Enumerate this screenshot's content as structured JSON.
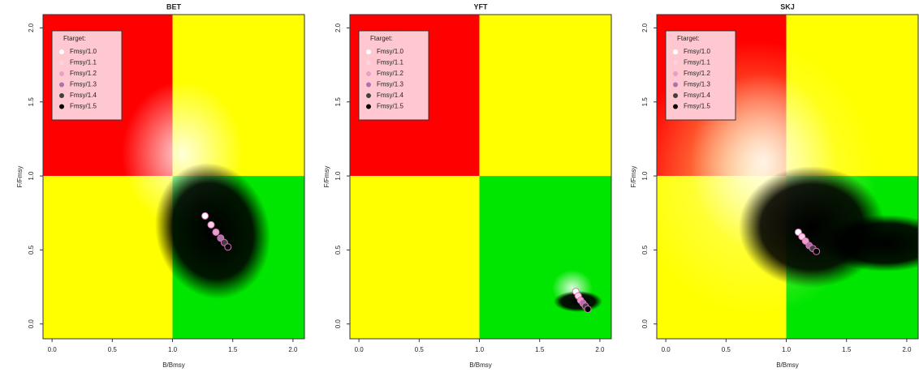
{
  "chart_data": [
    {
      "type": "scatter",
      "title": "BET",
      "xlabel": "B/Bmsy",
      "ylabel": "F/Fmsy",
      "xlim": [
        -0.075,
        2.095
      ],
      "ylim": [
        -0.1,
        2.09
      ],
      "xticks": [
        {
          "value": 0,
          "label": "0.0"
        },
        0.5,
        {
          "value": 1,
          "label": "1.0"
        },
        1.5,
        {
          "value": 2,
          "label": "2.0"
        }
      ],
      "yticks": [
        {
          "value": 0,
          "label": "0.0"
        },
        0.5,
        {
          "value": 1,
          "label": "1.0"
        },
        1.5,
        {
          "value": 2,
          "label": "2.0"
        }
      ],
      "quadrant_split": {
        "x": 1,
        "y": 1
      },
      "quadrant_colors": {
        "top_left": "#ff0000",
        "top_right": "#ffff00",
        "bottom_left": "#ffff00",
        "bottom_right": "#00e600"
      },
      "legend_title": "Ftarget:",
      "legend": "top-left",
      "series": [
        {
          "name": "Fmsy/1.0",
          "color": "#ffffff",
          "x": [
            1.27
          ],
          "values": [
            0.73
          ]
        },
        {
          "name": "Fmsy/1.1",
          "color": "#ffd0e0",
          "x": [
            1.32
          ],
          "values": [
            0.67
          ]
        },
        {
          "name": "Fmsy/1.2",
          "color": "#e8a0c8",
          "x": [
            1.36
          ],
          "values": [
            0.62
          ]
        },
        {
          "name": "Fmsy/1.3",
          "color": "#b070a8",
          "x": [
            1.4
          ],
          "values": [
            0.58
          ]
        },
        {
          "name": "Fmsy/1.4",
          "color": "#404040",
          "x": [
            1.43
          ],
          "values": [
            0.55
          ]
        },
        {
          "name": "Fmsy/1.5",
          "color": "#000000",
          "x": [
            1.46
          ],
          "values": [
            0.52
          ]
        }
      ]
    },
    {
      "type": "scatter",
      "title": "YFT",
      "xlabel": "B/Bmsy",
      "ylabel": "F/Fmsy",
      "xlim": [
        -0.075,
        2.095
      ],
      "ylim": [
        -0.1,
        2.09
      ],
      "xticks": [
        {
          "value": 0,
          "label": "0.0"
        },
        0.5,
        {
          "value": 1,
          "label": "1.0"
        },
        1.5,
        {
          "value": 2,
          "label": "2.0"
        }
      ],
      "yticks": [
        {
          "value": 0,
          "label": "0.0"
        },
        0.5,
        {
          "value": 1,
          "label": "1.0"
        },
        1.5,
        {
          "value": 2,
          "label": "2.0"
        }
      ],
      "quadrant_split": {
        "x": 1,
        "y": 1
      },
      "quadrant_colors": {
        "top_left": "#ff0000",
        "top_right": "#ffff00",
        "bottom_left": "#ffff00",
        "bottom_right": "#00e600"
      },
      "legend_title": "Ftarget:",
      "legend": "top-left",
      "series": [
        {
          "name": "Fmsy/1.0",
          "color": "#ffffff",
          "x": [
            1.8
          ],
          "values": [
            0.22
          ]
        },
        {
          "name": "Fmsy/1.1",
          "color": "#ffd0e0",
          "x": [
            1.82
          ],
          "values": [
            0.19
          ]
        },
        {
          "name": "Fmsy/1.2",
          "color": "#e8a0c8",
          "x": [
            1.84
          ],
          "values": [
            0.16
          ]
        },
        {
          "name": "Fmsy/1.3",
          "color": "#b070a8",
          "x": [
            1.86
          ],
          "values": [
            0.14
          ]
        },
        {
          "name": "Fmsy/1.4",
          "color": "#404040",
          "x": [
            1.88
          ],
          "values": [
            0.12
          ]
        },
        {
          "name": "Fmsy/1.5",
          "color": "#000000",
          "x": [
            1.9
          ],
          "values": [
            0.1
          ]
        }
      ]
    },
    {
      "type": "scatter",
      "title": "SKJ",
      "xlabel": "B/Bmsy",
      "ylabel": "F/Fmsy",
      "xlim": [
        -0.075,
        2.095
      ],
      "ylim": [
        -0.1,
        2.09
      ],
      "xticks": [
        {
          "value": 0,
          "label": "0.0"
        },
        0.5,
        {
          "value": 1,
          "label": "1.0"
        },
        1.5,
        {
          "value": 2,
          "label": "2.0"
        }
      ],
      "yticks": [
        {
          "value": 0,
          "label": "0.0"
        },
        0.5,
        {
          "value": 1,
          "label": "1.0"
        },
        1.5,
        {
          "value": 2,
          "label": "2.0"
        }
      ],
      "quadrant_split": {
        "x": 1,
        "y": 1
      },
      "quadrant_colors": {
        "top_left": "#ff0000",
        "top_right": "#ffff00",
        "bottom_left": "#ffff00",
        "bottom_right": "#00e600"
      },
      "legend_title": "Ftarget:",
      "legend": "top-left",
      "series": [
        {
          "name": "Fmsy/1.0",
          "color": "#ffffff",
          "x": [
            1.1
          ],
          "values": [
            0.62
          ]
        },
        {
          "name": "Fmsy/1.1",
          "color": "#ffd0e0",
          "x": [
            1.13
          ],
          "values": [
            0.59
          ]
        },
        {
          "name": "Fmsy/1.2",
          "color": "#e8a0c8",
          "x": [
            1.16
          ],
          "values": [
            0.56
          ]
        },
        {
          "name": "Fmsy/1.3",
          "color": "#b070a8",
          "x": [
            1.19
          ],
          "values": [
            0.53
          ]
        },
        {
          "name": "Fmsy/1.4",
          "color": "#404040",
          "x": [
            1.22
          ],
          "values": [
            0.51
          ]
        },
        {
          "name": "Fmsy/1.5",
          "color": "#000000",
          "x": [
            1.25
          ],
          "values": [
            0.49
          ]
        }
      ]
    }
  ]
}
